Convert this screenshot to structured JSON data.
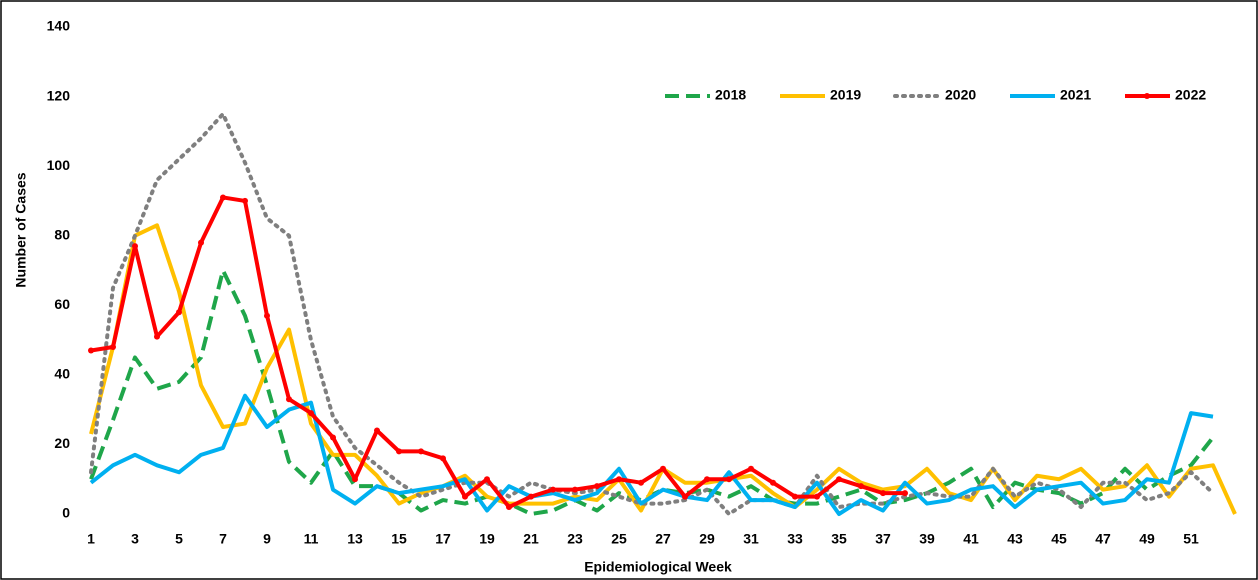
{
  "chart_data": {
    "type": "line",
    "x_label": "Epidemiological Week",
    "y_label": "Number of Cases",
    "x": [
      1,
      2,
      3,
      4,
      5,
      6,
      7,
      8,
      9,
      10,
      11,
      12,
      13,
      14,
      15,
      16,
      17,
      18,
      19,
      20,
      21,
      22,
      23,
      24,
      25,
      26,
      27,
      28,
      29,
      30,
      31,
      32,
      33,
      34,
      35,
      36,
      37,
      38,
      39,
      40,
      41,
      42,
      43,
      44,
      45,
      46,
      47,
      48,
      49,
      50,
      51,
      52,
      53
    ],
    "xlim": [
      0.5,
      53.5
    ],
    "xticks": [
      1,
      3,
      5,
      7,
      9,
      11,
      13,
      15,
      17,
      19,
      21,
      23,
      25,
      27,
      29,
      31,
      33,
      35,
      37,
      39,
      41,
      43,
      45,
      47,
      49,
      51
    ],
    "ylim": [
      0,
      140
    ],
    "yticks": [
      0,
      20,
      40,
      60,
      80,
      100,
      120,
      140
    ],
    "grid": false,
    "legend": "top-right",
    "series": [
      {
        "name": "2018",
        "color": "#1fa64a",
        "dash": "dashed",
        "markers": false,
        "values": [
          10,
          27,
          45,
          36,
          38,
          45,
          70,
          57,
          37,
          15,
          9,
          18,
          8,
          8,
          6,
          1,
          4,
          3,
          5,
          3,
          0,
          1,
          4,
          1,
          6,
          4,
          7,
          6,
          7,
          5,
          8,
          4,
          3,
          3,
          5,
          7,
          3,
          4,
          6,
          9,
          13,
          2,
          9,
          7,
          6,
          3,
          6,
          13,
          7,
          11,
          14,
          22,
          null
        ]
      },
      {
        "name": "2019",
        "color": "#ffc000",
        "dash": "solid",
        "markers": false,
        "values": [
          23,
          48,
          80,
          83,
          64,
          37,
          25,
          26,
          42,
          53,
          26,
          17,
          17,
          11,
          3,
          6,
          8,
          11,
          5,
          3,
          3,
          3,
          5,
          4,
          10,
          1,
          13,
          9,
          9,
          10,
          11,
          6,
          2,
          7,
          13,
          9,
          7,
          8,
          13,
          6,
          4,
          13,
          4,
          11,
          10,
          13,
          7,
          8,
          14,
          5,
          13,
          14,
          0
        ]
      },
      {
        "name": "2020",
        "color": "#7f7f7f",
        "dash": "dotted",
        "markers": false,
        "values": [
          12,
          65,
          80,
          96,
          102,
          108,
          115,
          101,
          85,
          80,
          50,
          28,
          19,
          14,
          9,
          5,
          7,
          9,
          9,
          5,
          9,
          7,
          6,
          7,
          5,
          3,
          3,
          4,
          7,
          0,
          4,
          4,
          2,
          11,
          2,
          3,
          3,
          5,
          6,
          5,
          5,
          13,
          5,
          9,
          7,
          2,
          9,
          9,
          4,
          6,
          12,
          6,
          null
        ]
      },
      {
        "name": "2021",
        "color": "#00b0f0",
        "dash": "solid",
        "markers": false,
        "values": [
          9,
          14,
          17,
          14,
          12,
          17,
          19,
          34,
          25,
          30,
          32,
          7,
          3,
          8,
          6,
          7,
          8,
          10,
          1,
          8,
          5,
          6,
          4,
          6,
          13,
          3,
          7,
          5,
          4,
          12,
          4,
          4,
          2,
          9,
          0,
          4,
          1,
          9,
          3,
          4,
          7,
          8,
          2,
          7,
          8,
          9,
          3,
          4,
          10,
          9,
          29,
          28,
          null
        ]
      },
      {
        "name": "2022",
        "color": "#ff0000",
        "dash": "solid",
        "markers": true,
        "values": [
          47,
          48,
          77,
          51,
          58,
          78,
          91,
          90,
          57,
          33,
          29,
          22,
          10,
          24,
          18,
          18,
          16,
          5,
          10,
          2,
          5,
          7,
          7,
          8,
          10,
          9,
          13,
          5,
          10,
          10,
          13,
          9,
          5,
          5,
          10,
          8,
          6,
          6,
          null,
          null,
          null,
          null,
          null,
          null,
          null,
          null,
          null,
          null,
          null,
          null,
          null,
          null,
          null
        ]
      }
    ]
  }
}
